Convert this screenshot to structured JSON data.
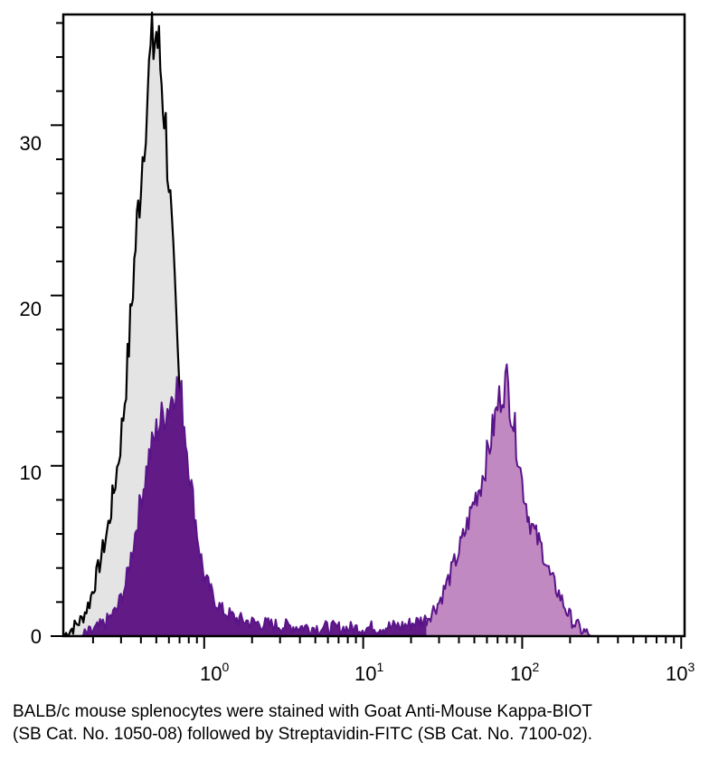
{
  "chart_data": {
    "type": "area",
    "title": "",
    "xlabel": "",
    "ylabel": "",
    "x_scale": "log",
    "xlim": [
      0.13,
      1050
    ],
    "ylim": [
      0,
      36.5
    ],
    "x_tick_labels": [
      {
        "base": "10",
        "exp": "0",
        "value": 1
      },
      {
        "base": "10",
        "exp": "1",
        "value": 10
      },
      {
        "base": "10",
        "exp": "2",
        "value": 100
      },
      {
        "base": "10",
        "exp": "3",
        "value": 1000
      }
    ],
    "y_ticks": [
      0,
      10,
      20,
      30
    ],
    "grid": false,
    "legend": "none",
    "series": [
      {
        "role": "control",
        "fill": "#e4e4e4",
        "stroke": "#000000",
        "points": [
          [
            0.13,
            0
          ],
          [
            0.15,
            0.5
          ],
          [
            0.17,
            1.0
          ],
          [
            0.19,
            2.0
          ],
          [
            0.21,
            3.5
          ],
          [
            0.23,
            5.0
          ],
          [
            0.25,
            6.5
          ],
          [
            0.27,
            8.5
          ],
          [
            0.29,
            10.5
          ],
          [
            0.31,
            13.0
          ],
          [
            0.33,
            16.0
          ],
          [
            0.35,
            19.5
          ],
          [
            0.37,
            23.0
          ],
          [
            0.4,
            27.0
          ],
          [
            0.43,
            31.0
          ],
          [
            0.46,
            34.0
          ],
          [
            0.5,
            35.5
          ],
          [
            0.53,
            33.5
          ],
          [
            0.56,
            31.0
          ],
          [
            0.6,
            27.0
          ],
          [
            0.64,
            21.5
          ],
          [
            0.68,
            16.5
          ],
          [
            0.72,
            12.0
          ],
          [
            0.77,
            8.0
          ],
          [
            0.83,
            5.0
          ],
          [
            0.9,
            3.0
          ],
          [
            1.0,
            1.8
          ],
          [
            1.2,
            1.0
          ],
          [
            1.5,
            0.5
          ],
          [
            2.0,
            0.3
          ],
          [
            3.0,
            0.15
          ],
          [
            5.0,
            0
          ]
        ]
      },
      {
        "role": "stained-negative-peak",
        "fill": "#621a86",
        "stroke": "#5a1489",
        "points": [
          [
            0.17,
            0
          ],
          [
            0.2,
            0.3
          ],
          [
            0.24,
            0.8
          ],
          [
            0.28,
            1.5
          ],
          [
            0.32,
            3.0
          ],
          [
            0.36,
            5.5
          ],
          [
            0.4,
            8.0
          ],
          [
            0.45,
            10.5
          ],
          [
            0.5,
            12.0
          ],
          [
            0.55,
            13.0
          ],
          [
            0.6,
            13.5
          ],
          [
            0.66,
            14.8
          ],
          [
            0.72,
            14.0
          ],
          [
            0.78,
            11.0
          ],
          [
            0.85,
            8.0
          ],
          [
            0.92,
            5.5
          ],
          [
            1.0,
            3.5
          ],
          [
            1.15,
            2.2
          ],
          [
            1.3,
            1.5
          ],
          [
            1.6,
            1.0
          ],
          [
            2.0,
            0.8
          ],
          [
            3.0,
            0.6
          ],
          [
            5.0,
            0.5
          ],
          [
            8.0,
            0.45
          ],
          [
            12.0,
            0.5
          ],
          [
            18.0,
            0.6
          ],
          [
            25.0,
            1.0
          ]
        ]
      },
      {
        "role": "stained-positive-peak",
        "fill": "#c189c2",
        "stroke": "#5a1489",
        "points": [
          [
            25.0,
            1.0
          ],
          [
            30.0,
            2.0
          ],
          [
            35.0,
            3.5
          ],
          [
            40.0,
            5.0
          ],
          [
            45.0,
            6.5
          ],
          [
            50.0,
            8.0
          ],
          [
            55.0,
            9.0
          ],
          [
            60.0,
            10.5
          ],
          [
            65.0,
            12.0
          ],
          [
            70.0,
            13.5
          ],
          [
            75.0,
            14.5
          ],
          [
            80.0,
            15.0
          ],
          [
            85.0,
            13.5
          ],
          [
            90.0,
            12.0
          ],
          [
            95.0,
            10.5
          ],
          [
            100.0,
            9.0
          ],
          [
            110.0,
            7.0
          ],
          [
            120.0,
            6.0
          ],
          [
            135.0,
            5.0
          ],
          [
            150.0,
            3.5
          ],
          [
            170.0,
            2.5
          ],
          [
            190.0,
            1.5
          ],
          [
            210.0,
            0.8
          ],
          [
            240.0,
            0.3
          ],
          [
            270.0,
            0
          ]
        ]
      }
    ]
  },
  "caption": "BALB/c mouse splenocytes were stained with Goat Anti-Mouse Kappa-BIOT (SB Cat. No. 1050-08) followed by Streptavidin-FITC (SB Cat. No. 7100-02)."
}
